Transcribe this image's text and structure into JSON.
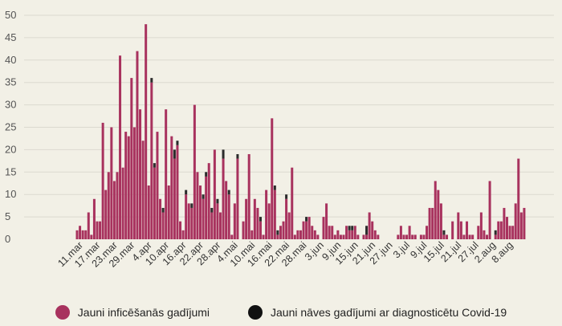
{
  "chart_data": {
    "type": "bar",
    "stacked": true,
    "ylim": [
      0,
      50
    ],
    "yticks": [
      0,
      5,
      10,
      15,
      20,
      25,
      30,
      35,
      40,
      45,
      50
    ],
    "grid": true,
    "legend_position": "bottom-center",
    "colors": {
      "cases": "#a8325e",
      "deaths": "#2b2b2b",
      "background": "#f2f0e6"
    },
    "x_ticks": [
      {
        "label": "11.mar",
        "day": 0
      },
      {
        "label": "17.mar",
        "day": 6
      },
      {
        "label": "23.mar",
        "day": 12
      },
      {
        "label": "29.mar",
        "day": 18
      },
      {
        "label": "4.apr",
        "day": 24
      },
      {
        "label": "10.apr",
        "day": 30
      },
      {
        "label": "16.apr",
        "day": 36
      },
      {
        "label": "22.apr",
        "day": 42
      },
      {
        "label": "28.apr",
        "day": 48
      },
      {
        "label": "4.mai",
        "day": 54
      },
      {
        "label": "10.mai",
        "day": 60
      },
      {
        "label": "16.mai",
        "day": 66
      },
      {
        "label": "22.mai",
        "day": 72
      },
      {
        "label": "28.mai",
        "day": 78
      },
      {
        "label": "3.jun",
        "day": 84
      },
      {
        "label": "9.jun",
        "day": 90
      },
      {
        "label": "15.jun",
        "day": 96
      },
      {
        "label": "21.jun",
        "day": 102
      },
      {
        "label": "27.jun",
        "day": 108
      },
      {
        "label": "3.jul",
        "day": 114
      },
      {
        "label": "9.jul",
        "day": 120
      },
      {
        "label": "15.jul",
        "day": 126
      },
      {
        "label": "21.jul",
        "day": 132
      },
      {
        "label": "27.jul",
        "day": 138
      },
      {
        "label": "2.aug",
        "day": 144
      },
      {
        "label": "8.aug",
        "day": 150
      }
    ],
    "series": [
      {
        "name": "Jauni inficēšanās gadījumi",
        "values": [
          2,
          3,
          2,
          2,
          6,
          1,
          9,
          4,
          4,
          26,
          11,
          15,
          25,
          13,
          15,
          41,
          16,
          24,
          23,
          36,
          25,
          42,
          29,
          22,
          48,
          12,
          35,
          16,
          24,
          9,
          6,
          29,
          12,
          23,
          18,
          21,
          4,
          2,
          10,
          8,
          7,
          30,
          15,
          12,
          9,
          14,
          17,
          6,
          20,
          8,
          6,
          18,
          13,
          10,
          1,
          8,
          18,
          0,
          4,
          9,
          19,
          2,
          9,
          7,
          4,
          1,
          11,
          8,
          27,
          11,
          1,
          3,
          4,
          9,
          6,
          16,
          1,
          2,
          2,
          4,
          4,
          5,
          3,
          2,
          1,
          0,
          5,
          8,
          3,
          3,
          1,
          2,
          1,
          1,
          3,
          2,
          2,
          3,
          1,
          0,
          1,
          1,
          6,
          4,
          2,
          1,
          0,
          0,
          0,
          0,
          0,
          0,
          1,
          3,
          1,
          1,
          3,
          1,
          1,
          0,
          1,
          1,
          3,
          7,
          7,
          13,
          11,
          8,
          1,
          1,
          0,
          4,
          0,
          6,
          4,
          1,
          4,
          1,
          1,
          0,
          3,
          6,
          2,
          1,
          13,
          0,
          1,
          4,
          4,
          7,
          5,
          3,
          3,
          8,
          18,
          6,
          7
        ],
        "color": "#a8325e"
      },
      {
        "name": "Jauni nāves gadījumi ar diagnosticētu Covid-19",
        "values": [
          0,
          0,
          0,
          0,
          0,
          0,
          0,
          0,
          0,
          0,
          0,
          0,
          0,
          0,
          0,
          0,
          0,
          0,
          0,
          0,
          0,
          0,
          0,
          0,
          0,
          0,
          1,
          1,
          0,
          0,
          1,
          0,
          0,
          0,
          2,
          1,
          0,
          0,
          1,
          0,
          1,
          0,
          0,
          0,
          1,
          1,
          0,
          1,
          0,
          1,
          0,
          2,
          0,
          1,
          0,
          0,
          1,
          0,
          0,
          0,
          0,
          0,
          0,
          0,
          1,
          0,
          0,
          0,
          0,
          1,
          1,
          0,
          0,
          1,
          0,
          0,
          0,
          0,
          0,
          0,
          1,
          0,
          0,
          0,
          0,
          0,
          0,
          0,
          0,
          0,
          0,
          0,
          0,
          0,
          0,
          1,
          1,
          0,
          0,
          0,
          0,
          2,
          0,
          0,
          0,
          0,
          0,
          0,
          0,
          0,
          0,
          0,
          0,
          0,
          0,
          0,
          0,
          0,
          0,
          0,
          0,
          0,
          0,
          0,
          0,
          0,
          0,
          0,
          1,
          0,
          0,
          0,
          0,
          0,
          0,
          0,
          0,
          0,
          0,
          0,
          0,
          0,
          0,
          0,
          0,
          0,
          1,
          0,
          0,
          0,
          0,
          0,
          0,
          0,
          0,
          0,
          0
        ]
      }
    ]
  },
  "legend": {
    "cases_label": "Jauni inficēšanās gadījumi",
    "deaths_label": "Jauni nāves gadījumi ar diagnosticētu Covid-19"
  }
}
